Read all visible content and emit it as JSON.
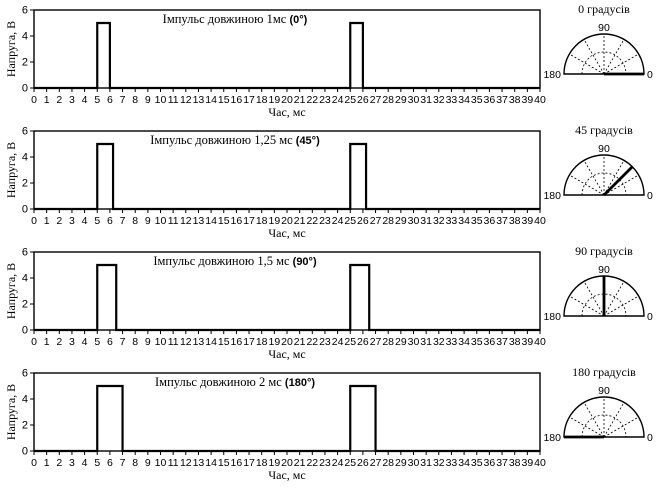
{
  "chart_data": [
    {
      "type": "line",
      "title": "Імпульс довжиною 1мс",
      "title_suffix": "(0°)",
      "xlabel": "Час, мс",
      "ylabel": "Напруга, В",
      "xlim": [
        0,
        40
      ],
      "ylim": [
        0,
        6
      ],
      "x_ticks": [
        0,
        1,
        2,
        3,
        4,
        5,
        6,
        7,
        8,
        9,
        10,
        11,
        12,
        13,
        14,
        15,
        16,
        17,
        18,
        19,
        20,
        21,
        22,
        23,
        24,
        25,
        26,
        27,
        28,
        29,
        30,
        31,
        32,
        33,
        34,
        35,
        36,
        37,
        38,
        39,
        40
      ],
      "y_ticks": [
        0,
        2,
        4,
        6
      ],
      "grid": false,
      "series": [
        {
          "x": [
            0,
            5,
            5,
            6,
            6,
            25,
            25,
            26,
            26,
            40
          ],
          "y": [
            0,
            0,
            5,
            5,
            0,
            0,
            5,
            5,
            0,
            0
          ]
        }
      ],
      "dial": {
        "label": "0 градусів",
        "angle": 0,
        "ticks": [
          "90",
          "180",
          "0"
        ]
      }
    },
    {
      "type": "line",
      "title": "Імпульс довжиною 1,25 мс",
      "title_suffix": "(45°)",
      "xlabel": "Час, мс",
      "ylabel": "Напруга, В",
      "xlim": [
        0,
        40
      ],
      "ylim": [
        0,
        6
      ],
      "x_ticks": [
        0,
        1,
        2,
        3,
        4,
        5,
        6,
        7,
        8,
        9,
        10,
        11,
        12,
        13,
        14,
        15,
        16,
        17,
        18,
        19,
        20,
        21,
        22,
        23,
        24,
        25,
        26,
        27,
        28,
        29,
        30,
        31,
        32,
        33,
        34,
        35,
        36,
        37,
        38,
        39,
        40
      ],
      "y_ticks": [
        0,
        2,
        4,
        6
      ],
      "grid": false,
      "series": [
        {
          "x": [
            0,
            5,
            5,
            6.25,
            6.25,
            25,
            25,
            26.25,
            26.25,
            40
          ],
          "y": [
            0,
            0,
            5,
            5,
            0,
            0,
            5,
            5,
            0,
            0
          ]
        }
      ],
      "dial": {
        "label": "45 градусів",
        "angle": 45,
        "ticks": [
          "90",
          "180",
          "0"
        ]
      }
    },
    {
      "type": "line",
      "title": "Імпульс довжиною 1,5 мс",
      "title_suffix": "(90°)",
      "xlabel": "Час, мс",
      "ylabel": "Напруга, В",
      "xlim": [
        0,
        40
      ],
      "ylim": [
        0,
        6
      ],
      "x_ticks": [
        0,
        1,
        2,
        3,
        4,
        5,
        6,
        7,
        8,
        9,
        10,
        11,
        12,
        13,
        14,
        15,
        16,
        17,
        18,
        19,
        20,
        21,
        22,
        23,
        24,
        25,
        26,
        27,
        28,
        29,
        30,
        31,
        32,
        33,
        34,
        35,
        36,
        37,
        38,
        39,
        40
      ],
      "y_ticks": [
        0,
        2,
        4,
        6
      ],
      "grid": false,
      "series": [
        {
          "x": [
            0,
            5,
            5,
            6.5,
            6.5,
            25,
            25,
            26.5,
            26.5,
            40
          ],
          "y": [
            0,
            0,
            5,
            5,
            0,
            0,
            5,
            5,
            0,
            0
          ]
        }
      ],
      "dial": {
        "label": "90 градусів",
        "angle": 90,
        "ticks": [
          "90",
          "180",
          "0"
        ]
      }
    },
    {
      "type": "line",
      "title": "Імпульс довжиною 2 мс",
      "title_suffix": "(180°)",
      "xlabel": "Час, мс",
      "ylabel": "Напруга, В",
      "xlim": [
        0,
        40
      ],
      "ylim": [
        0,
        6
      ],
      "x_ticks": [
        0,
        1,
        2,
        3,
        4,
        5,
        6,
        7,
        8,
        9,
        10,
        11,
        12,
        13,
        14,
        15,
        16,
        17,
        18,
        19,
        20,
        21,
        22,
        23,
        24,
        25,
        26,
        27,
        28,
        29,
        30,
        31,
        32,
        33,
        34,
        35,
        36,
        37,
        38,
        39,
        40
      ],
      "y_ticks": [
        0,
        2,
        4,
        6
      ],
      "grid": false,
      "series": [
        {
          "x": [
            0,
            5,
            5,
            7,
            7,
            25,
            25,
            27,
            27,
            40
          ],
          "y": [
            0,
            0,
            5,
            5,
            0,
            0,
            5,
            5,
            0,
            0
          ]
        }
      ],
      "dial": {
        "label": "180 градусів",
        "angle": 180,
        "ticks": [
          "90",
          "180",
          "0"
        ]
      }
    }
  ]
}
